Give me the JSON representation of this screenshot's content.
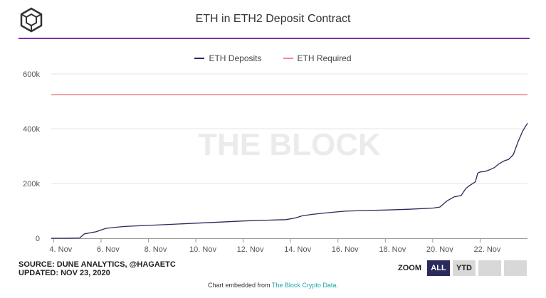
{
  "header": {
    "title": "ETH in ETH2 Deposit Contract"
  },
  "watermark": "THE BLOCK",
  "footer": {
    "source": "SOURCE: DUNE ANALYTICS, @HAGAETC",
    "updated": "UPDATED: NOV 23, 2020",
    "embed_prefix": "Chart embedded from",
    "embed_link": "The Block Crypto Data",
    "embed_suffix": "."
  },
  "zoom": {
    "label": "ZOOM",
    "buttons": [
      "ALL",
      "YTD",
      "",
      ""
    ],
    "active": "ALL"
  },
  "chart_data": {
    "type": "line",
    "title": "ETH in ETH2 Deposit Contract",
    "xlabel": "",
    "ylabel": "",
    "x_tick_labels": [
      "4. Nov",
      "6. Nov",
      "8. Nov",
      "10. Nov",
      "12. Nov",
      "14. Nov",
      "16. Nov",
      "18. Nov",
      "20. Nov",
      "22. Nov"
    ],
    "x_tick_days": [
      4,
      6,
      8,
      10,
      12,
      14,
      16,
      18,
      20,
      22
    ],
    "xlim_days": [
      3.9,
      24.0
    ],
    "y_tick_labels": [
      "0",
      "200k",
      "400k",
      "600k"
    ],
    "y_tick_values": [
      0,
      200000,
      400000,
      600000
    ],
    "ylim": [
      0,
      600000
    ],
    "grid": true,
    "legend_position": "top-center",
    "series": [
      {
        "name": "ETH Deposits",
        "color": "#2a2a5c",
        "x_days": [
          3.9,
          4.5,
          5.1,
          5.3,
          5.8,
          6.2,
          6.6,
          7.0,
          8.0,
          9.0,
          10.0,
          11.0,
          12.0,
          13.0,
          13.8,
          14.2,
          14.5,
          14.9,
          15.3,
          15.8,
          16.3,
          17.0,
          18.0,
          19.0,
          20.0,
          20.3,
          20.6,
          20.9,
          21.2,
          21.4,
          21.6,
          21.8,
          21.9,
          22.0,
          22.2,
          22.4,
          22.6,
          22.8,
          23.0,
          23.2,
          23.4,
          23.6,
          23.8,
          24.0
        ],
        "values": [
          0,
          0,
          1000,
          16000,
          24000,
          36000,
          40000,
          43000,
          47000,
          51000,
          55000,
          59000,
          63000,
          66000,
          68000,
          74000,
          82000,
          87000,
          91000,
          95000,
          99000,
          101000,
          103000,
          106000,
          110000,
          114000,
          136000,
          151000,
          156000,
          182000,
          195000,
          206000,
          238000,
          242000,
          244000,
          250000,
          258000,
          272000,
          282000,
          288000,
          305000,
          352000,
          392000,
          420000
        ]
      },
      {
        "name": "ETH Required",
        "color": "#f08a96",
        "x_days": [
          3.9,
          24.0
        ],
        "values": [
          524288,
          524288
        ]
      }
    ]
  }
}
